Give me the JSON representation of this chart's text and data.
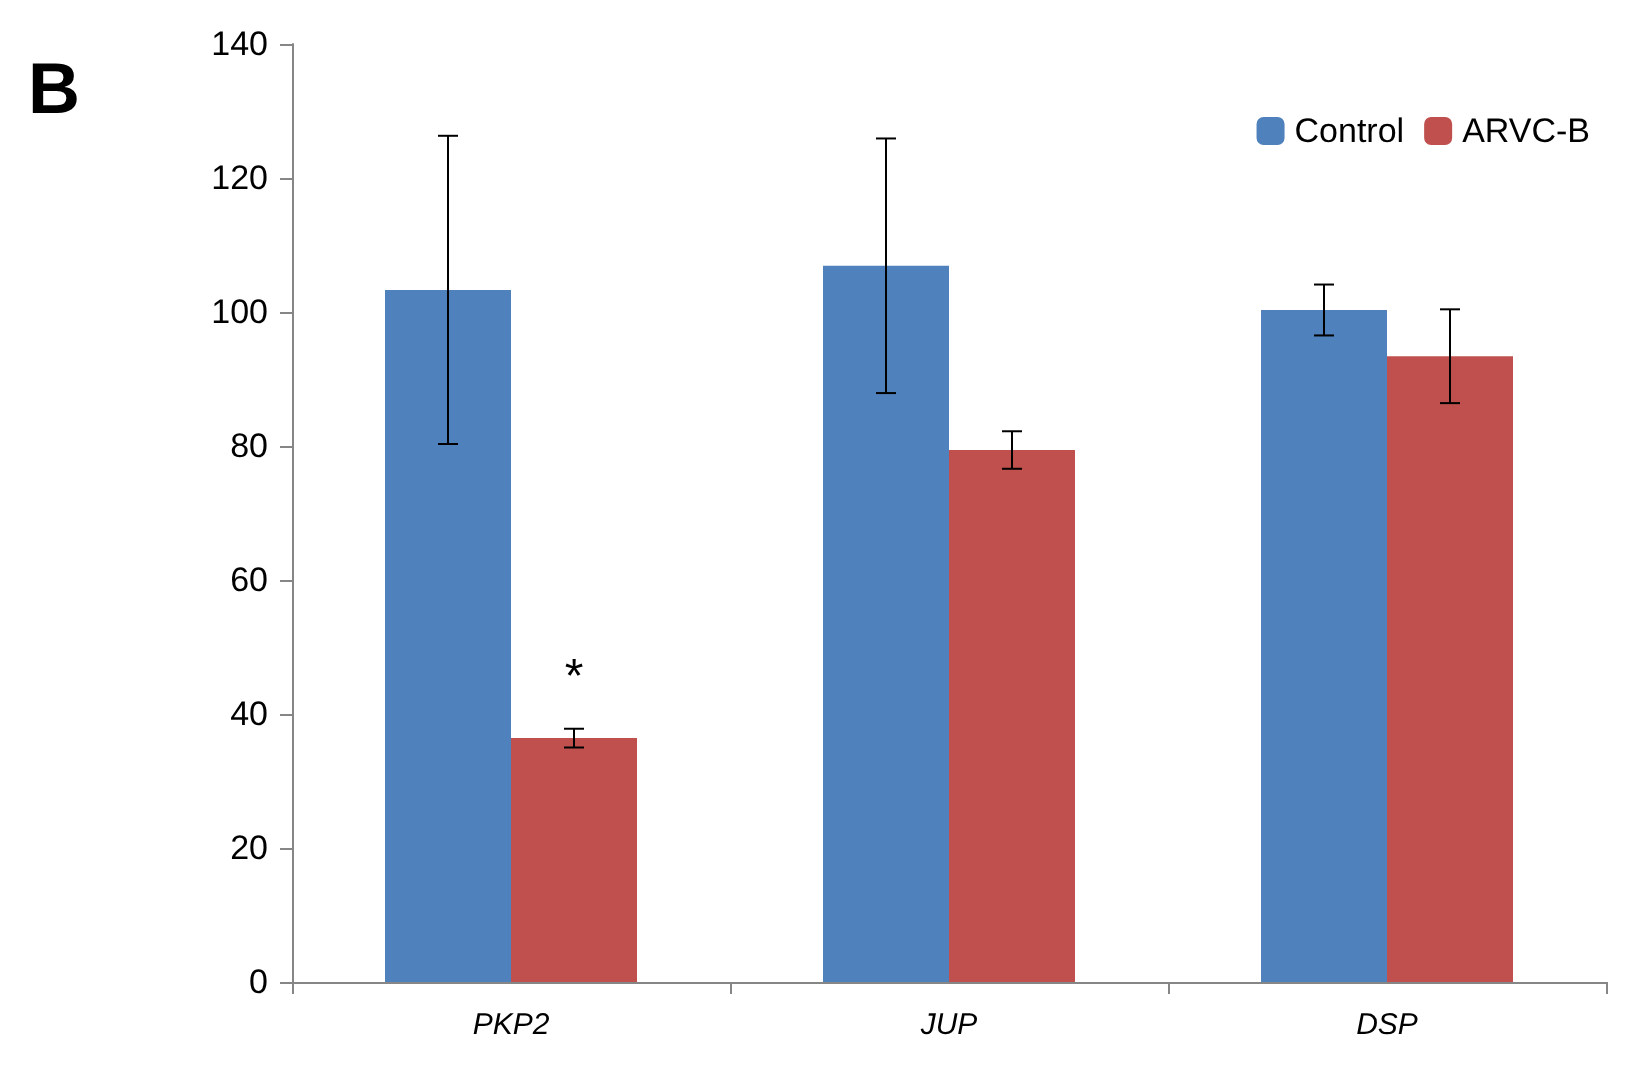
{
  "chart_data": {
    "type": "bar",
    "categories": [
      "PKP2",
      "JUP",
      "DSP"
    ],
    "series": [
      {
        "name": "Control",
        "color": "#4f81bd",
        "values": [
          103.3,
          106.9,
          100.3
        ],
        "errors": [
          23,
          19,
          3.8
        ]
      },
      {
        "name": "ARVC-B",
        "color": "#c0504d",
        "values": [
          36.4,
          79.4,
          93.4
        ],
        "errors": [
          1.4,
          2.8,
          7
        ]
      }
    ],
    "ylim": [
      0,
      140
    ],
    "yticks": [
      0,
      20,
      40,
      60,
      80,
      100,
      120,
      140
    ],
    "grid": false,
    "legend": "top right",
    "annotations": [
      "B",
      {
        "text": "*",
        "x": "PKP2",
        "y": 42
      }
    ]
  }
}
